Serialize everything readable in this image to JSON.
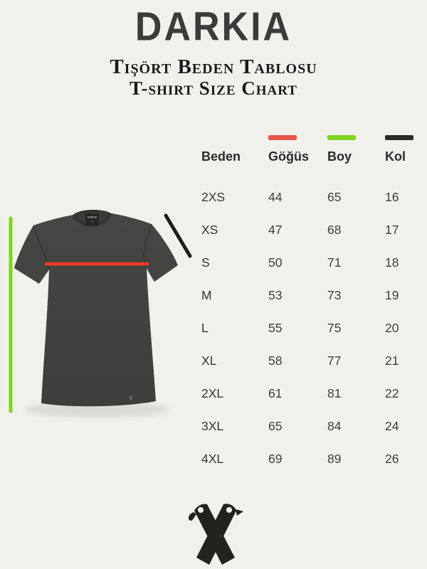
{
  "header": {
    "brand": "DARKIA",
    "subtitle_turkish": "Tişört Beden Tablosu",
    "subtitle_english": "T-shirt Size Chart"
  },
  "chart_data": {
    "type": "table",
    "title": "Tişört Beden Tablosu — T-shirt Size Chart",
    "columns": [
      {
        "label": "Beden",
        "indicator_color": null
      },
      {
        "label": "Göğüs",
        "indicator_color": "#e9544a"
      },
      {
        "label": "Boy",
        "indicator_color": "#7fd41c"
      },
      {
        "label": "Kol",
        "indicator_color": "#2b2b26"
      }
    ],
    "rows": [
      [
        "2XS",
        44,
        65,
        16
      ],
      [
        "XS",
        47,
        68,
        17
      ],
      [
        "S",
        50,
        71,
        18
      ],
      [
        "M",
        53,
        73,
        19
      ],
      [
        "L",
        55,
        75,
        20
      ],
      [
        "XL",
        58,
        77,
        21
      ],
      [
        "2XL",
        61,
        81,
        22
      ],
      [
        "3XL",
        65,
        84,
        24
      ],
      [
        "4XL",
        69,
        89,
        26
      ]
    ],
    "legend": [
      {
        "label": "Göğüs",
        "color": "#e9544a"
      },
      {
        "label": "Boy",
        "color": "#7fd41c"
      },
      {
        "label": "Kol",
        "color": "#2b2b26"
      }
    ]
  },
  "tshirt": {
    "neck_label": "DARKIA",
    "hem_logo_text": "x"
  },
  "colors": {
    "background": "#f1f1ec",
    "text": "#2f2f2e",
    "chest_line": "#ee3b26",
    "height_line": "#7fd41c",
    "sleeve_line": "#1d1d1b",
    "shirt": "#424240",
    "logo": "#22221f"
  }
}
